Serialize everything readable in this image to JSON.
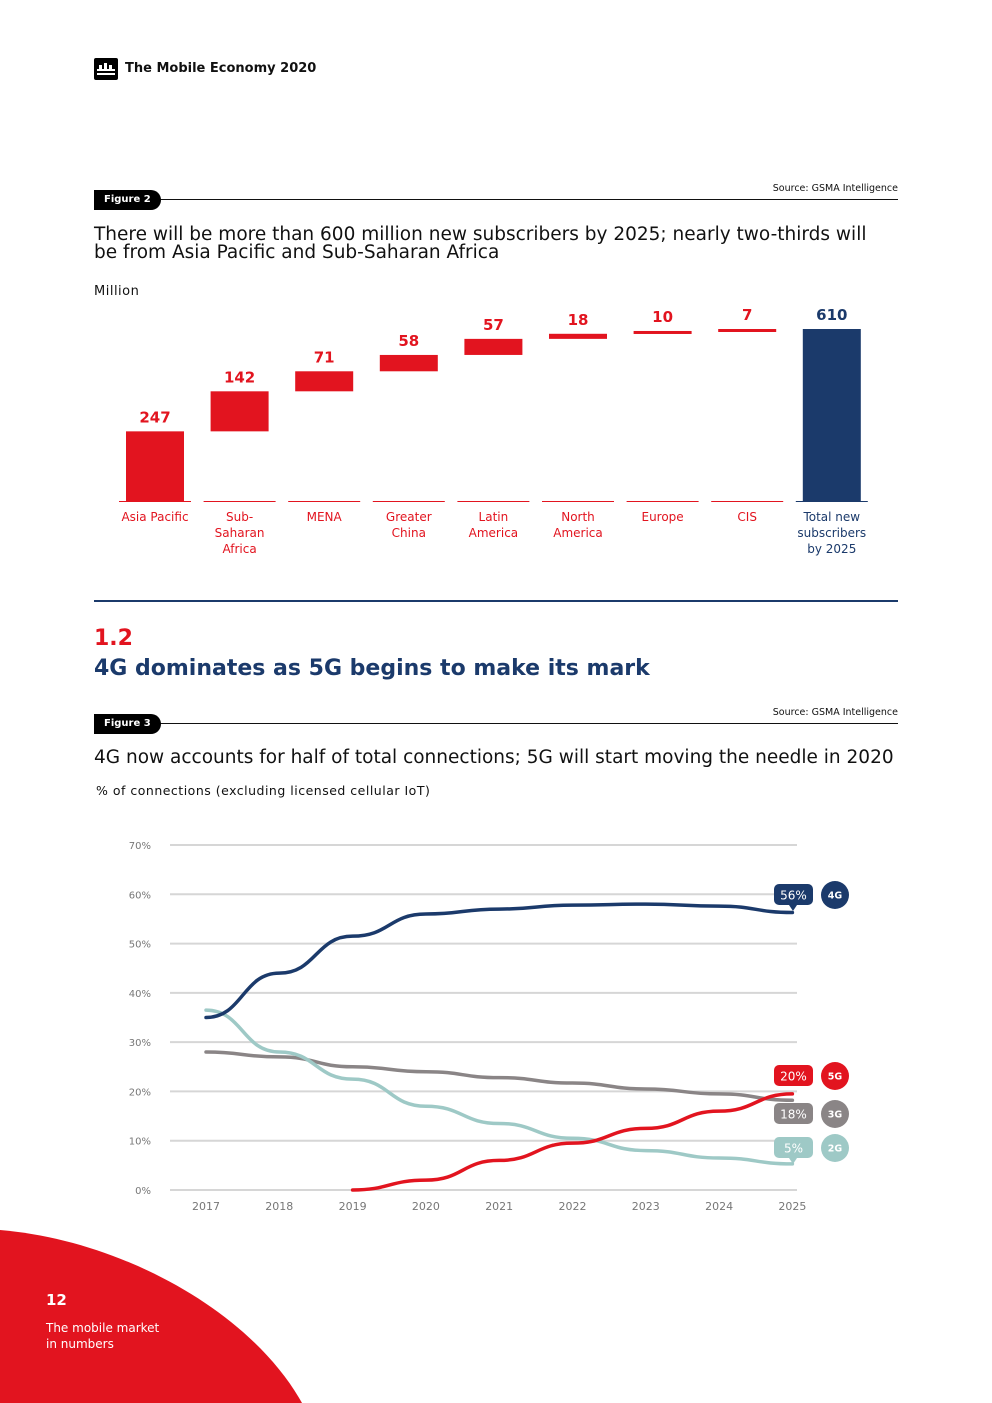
{
  "header": {
    "title": "The Mobile Economy 2020"
  },
  "figure2": {
    "tag": "Figure 2",
    "source": "Source: GSMA Intelligence",
    "title": "There will be more than 600 million new subscribers by 2025; nearly two-thirds will be from Asia Pacific and Sub-Saharan Africa",
    "unit": "Million"
  },
  "section": {
    "number": "1.2",
    "title": "4G dominates as 5G begins to make its mark"
  },
  "figure3": {
    "tag": "Figure 3",
    "source": "Source: GSMA Intelligence",
    "title": "4G now accounts for half of total connections; 5G will start moving the needle in 2020",
    "unit": "% of connections (excluding licensed cellular IoT)"
  },
  "footer": {
    "page_number": "12",
    "label_line1": "The mobile market",
    "label_line2": "in numbers"
  },
  "colors": {
    "red": "#e2141f",
    "navy": "#1b3a6b",
    "grey": "#8a8586",
    "teal": "#9ec9c6"
  },
  "chart_data": [
    {
      "type": "bar",
      "subtype": "waterfall",
      "title": "There will be more than 600 million new subscribers by 2025; nearly two-thirds will be from Asia Pacific and Sub-Saharan Africa",
      "ylabel": "Million",
      "categories": [
        "Asia Pacific",
        "Sub-Saharan Africa",
        "MENA",
        "Greater China",
        "Latin America",
        "North America",
        "Europe",
        "CIS",
        "Total new subscribers by 2025"
      ],
      "category_lines": [
        [
          "Asia Pacific"
        ],
        [
          "Sub-",
          "Saharan",
          "Africa"
        ],
        [
          "MENA"
        ],
        [
          "Greater",
          "China"
        ],
        [
          "Latin",
          "America"
        ],
        [
          "North",
          "America"
        ],
        [
          "Europe"
        ],
        [
          "CIS"
        ],
        [
          "Total new",
          "subscribers",
          "by 2025"
        ]
      ],
      "values": [
        247,
        142,
        71,
        58,
        57,
        18,
        10,
        7,
        610
      ],
      "total_index": 8,
      "ylim": [
        0,
        610
      ]
    },
    {
      "type": "line",
      "title": "4G now accounts for half of total connections; 5G will start moving the needle in 2020",
      "ylabel": "% of connections (excluding licensed cellular IoT)",
      "x": [
        "2017",
        "2018",
        "2019",
        "2020",
        "2021",
        "2022",
        "2023",
        "2024",
        "2025"
      ],
      "ylim": [
        0,
        70
      ],
      "yticks": [
        0,
        10,
        20,
        30,
        40,
        50,
        60,
        70
      ],
      "ytick_labels": [
        "0%",
        "10%",
        "20%",
        "30%",
        "40%",
        "50%",
        "60%",
        "70%"
      ],
      "grid": true,
      "series": [
        {
          "name": "4G",
          "color": "#1b3a6b",
          "end_label": "56%",
          "values": [
            35,
            44,
            51.5,
            56,
            57,
            57.8,
            58,
            57.6,
            56.3
          ]
        },
        {
          "name": "3G",
          "color": "#8a8586",
          "end_label": "18%",
          "values": [
            28,
            27,
            25,
            24,
            22.8,
            21.7,
            20.5,
            19.5,
            18.2
          ]
        },
        {
          "name": "2G",
          "color": "#9ec9c6",
          "end_label": "5%",
          "values": [
            36.5,
            28,
            22.5,
            17,
            13.5,
            10.5,
            8,
            6.5,
            5.3
          ]
        },
        {
          "name": "5G",
          "color": "#e2141f",
          "end_label": "20%",
          "values": [
            null,
            null,
            0,
            2,
            6,
            9.5,
            12.5,
            16,
            19.5
          ]
        }
      ]
    }
  ]
}
